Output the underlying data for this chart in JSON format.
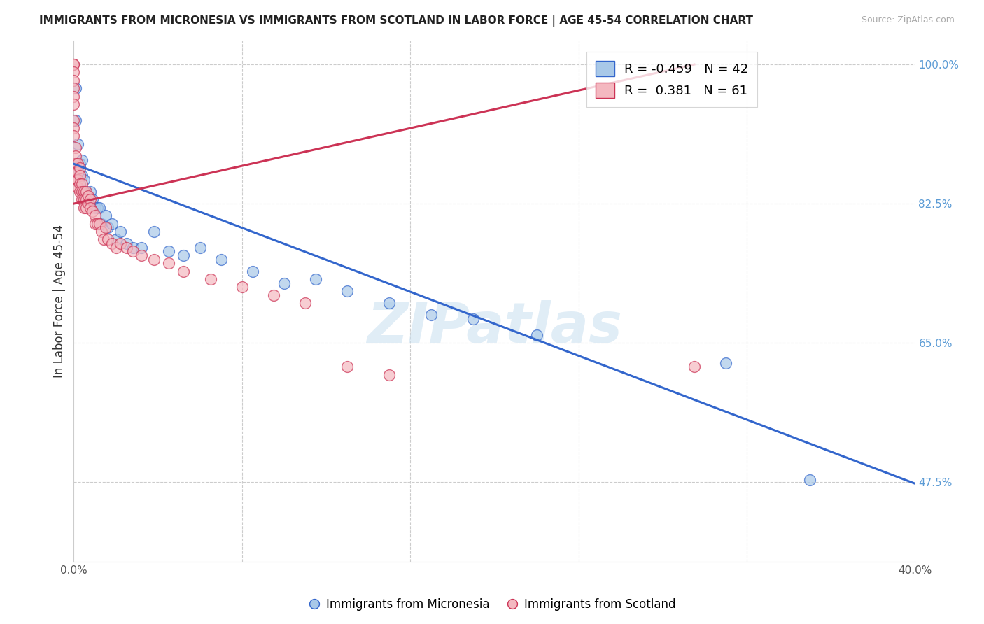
{
  "title": "IMMIGRANTS FROM MICRONESIA VS IMMIGRANTS FROM SCOTLAND IN LABOR FORCE | AGE 45-54 CORRELATION CHART",
  "source": "Source: ZipAtlas.com",
  "ylabel": "In Labor Force | Age 45-54",
  "x_min": 0.0,
  "x_max": 0.4,
  "y_min": 0.375,
  "y_max": 1.03,
  "x_ticks": [
    0.0,
    0.08,
    0.16,
    0.24,
    0.32,
    0.4
  ],
  "x_tick_labels": [
    "0.0%",
    "",
    "",
    "",
    "",
    "40.0%"
  ],
  "y_ticks": [
    0.475,
    0.65,
    0.825,
    1.0
  ],
  "y_tick_labels": [
    "47.5%",
    "65.0%",
    "82.5%",
    "100.0%"
  ],
  "micronesia_R": -0.459,
  "micronesia_N": 42,
  "scotland_R": 0.381,
  "scotland_N": 61,
  "color_micronesia": "#a8c8e8",
  "color_scotland": "#f4b8c0",
  "color_micronesia_line": "#3366cc",
  "color_scotland_line": "#cc3355",
  "color_right_axis": "#5b9bd5",
  "watermark": "ZIPatlas",
  "micronesia_x": [
    0.001,
    0.001,
    0.002,
    0.002,
    0.003,
    0.003,
    0.003,
    0.004,
    0.004,
    0.005,
    0.005,
    0.006,
    0.007,
    0.008,
    0.009,
    0.01,
    0.011,
    0.012,
    0.013,
    0.015,
    0.016,
    0.018,
    0.02,
    0.022,
    0.025,
    0.028,
    0.032,
    0.038,
    0.045,
    0.052,
    0.06,
    0.07,
    0.085,
    0.1,
    0.115,
    0.13,
    0.15,
    0.17,
    0.19,
    0.22,
    0.31,
    0.35
  ],
  "micronesia_y": [
    0.97,
    0.93,
    0.9,
    0.87,
    0.875,
    0.87,
    0.86,
    0.88,
    0.86,
    0.855,
    0.84,
    0.84,
    0.83,
    0.84,
    0.83,
    0.82,
    0.82,
    0.82,
    0.8,
    0.81,
    0.795,
    0.8,
    0.78,
    0.79,
    0.775,
    0.77,
    0.77,
    0.79,
    0.765,
    0.76,
    0.77,
    0.755,
    0.74,
    0.725,
    0.73,
    0.715,
    0.7,
    0.685,
    0.68,
    0.66,
    0.625,
    0.478
  ],
  "scotland_x": [
    0.0,
    0.0,
    0.0,
    0.0,
    0.0,
    0.0,
    0.0,
    0.0,
    0.0,
    0.0,
    0.001,
    0.001,
    0.001,
    0.001,
    0.001,
    0.002,
    0.002,
    0.002,
    0.002,
    0.003,
    0.003,
    0.003,
    0.003,
    0.004,
    0.004,
    0.004,
    0.005,
    0.005,
    0.005,
    0.006,
    0.006,
    0.006,
    0.007,
    0.007,
    0.008,
    0.008,
    0.009,
    0.01,
    0.01,
    0.011,
    0.012,
    0.013,
    0.014,
    0.015,
    0.016,
    0.018,
    0.02,
    0.022,
    0.025,
    0.028,
    0.032,
    0.038,
    0.045,
    0.052,
    0.065,
    0.08,
    0.095,
    0.11,
    0.13,
    0.15,
    0.295
  ],
  "scotland_y": [
    1.0,
    1.0,
    0.99,
    0.98,
    0.97,
    0.96,
    0.95,
    0.93,
    0.92,
    0.91,
    0.895,
    0.885,
    0.875,
    0.865,
    0.855,
    0.875,
    0.865,
    0.855,
    0.845,
    0.87,
    0.86,
    0.85,
    0.84,
    0.85,
    0.84,
    0.83,
    0.84,
    0.83,
    0.82,
    0.84,
    0.83,
    0.82,
    0.835,
    0.825,
    0.83,
    0.82,
    0.815,
    0.81,
    0.8,
    0.8,
    0.8,
    0.79,
    0.78,
    0.795,
    0.78,
    0.775,
    0.77,
    0.775,
    0.77,
    0.765,
    0.76,
    0.755,
    0.75,
    0.74,
    0.73,
    0.72,
    0.71,
    0.7,
    0.62,
    0.61,
    0.62
  ],
  "micronesia_line_x0": 0.0,
  "micronesia_line_y0": 0.875,
  "micronesia_line_x1": 0.4,
  "micronesia_line_y1": 0.473,
  "scotland_line_x0": 0.0,
  "scotland_line_y0": 0.825,
  "scotland_line_x1": 0.295,
  "scotland_line_y1": 1.0
}
